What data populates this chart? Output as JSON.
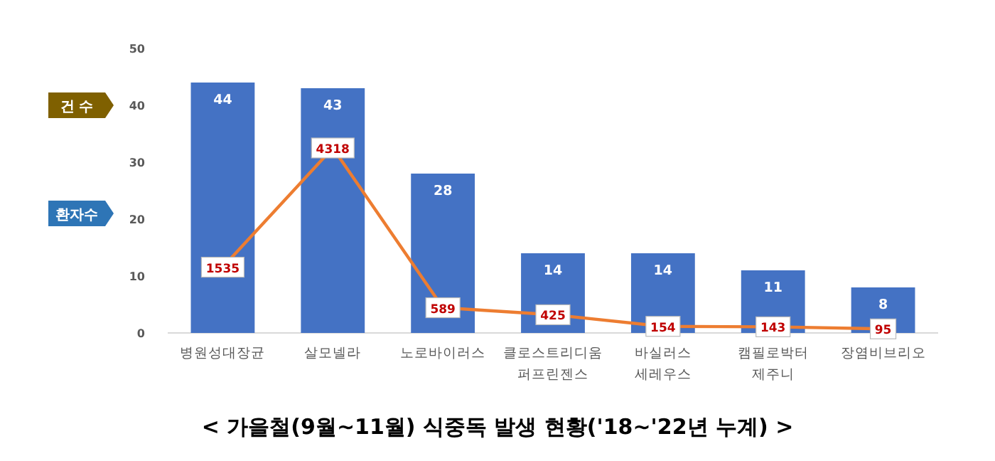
{
  "chart_data": {
    "type": "bar",
    "title": "< 가을철(9월~11월) 식중독 발생 현황('18~'22년 누계) >",
    "categories": [
      "병원성대장균",
      "살모넬라",
      "노로바이러스",
      "클로스트리디움\n퍼프린젠스",
      "바실러스\n세레우스",
      "캠필로박터\n제주니",
      "장염비브리오"
    ],
    "series": [
      {
        "color": "#4472c4",
        "values": [
          44,
          43,
          28,
          14,
          14,
          11,
          8
        ]
      },
      {
        "type": "line",
        "axis": "y2",
        "color": "#ed7d31",
        "marker": "square",
        "values": [
          1535,
          4318,
          589,
          425,
          154,
          143,
          95
        ]
      }
    ],
    "ylim": [
      0,
      50
    ],
    "yticks": [
      0,
      10,
      20,
      30,
      40,
      50
    ],
    "data_labels": true,
    "grid": false,
    "line_style": "solid",
    "tick_labels": "y",
    "annotations": [
      "건 수",
      "환자수"
    ]
  }
}
